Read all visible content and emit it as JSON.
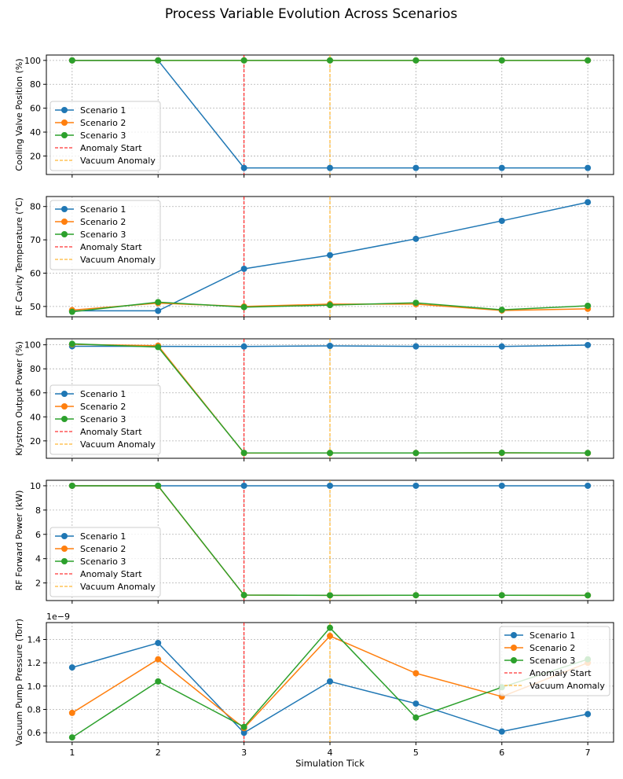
{
  "figure": {
    "title": "Process Variable Evolution Across Scenarios",
    "xlabel": "Simulation Tick"
  },
  "colors": {
    "scenario_1": "#1f77b4",
    "scenario_2": "#ff7f0e",
    "scenario_3": "#2ca02c",
    "anomaly_start": "#ff0000",
    "vacuum_anomaly": "#ffa500"
  },
  "chart_data": [
    {
      "type": "line",
      "ylabel": "Cooling Valve Position (%)",
      "x": [
        1,
        2,
        3,
        4,
        5,
        6,
        7
      ],
      "xticks": [
        "1",
        "2",
        "3",
        "4",
        "5",
        "6",
        "7"
      ],
      "xlim": [
        0.7,
        7.3
      ],
      "ylim": [
        4.5,
        104.5
      ],
      "yticks": [
        20,
        40,
        60,
        80,
        100
      ],
      "ytick_labels": [
        "20",
        "40",
        "60",
        "80",
        "100"
      ],
      "show_xtick_labels": false,
      "grid": true,
      "legend_position": "lower-left",
      "series": [
        {
          "name": "Scenario 1",
          "values": [
            100,
            100,
            10,
            10,
            10,
            10,
            10
          ]
        },
        {
          "name": "Scenario 2",
          "values": [
            100,
            100,
            100,
            100,
            100,
            100,
            100
          ]
        },
        {
          "name": "Scenario 3",
          "values": [
            100,
            100,
            100,
            100,
            100,
            100,
            100
          ]
        }
      ],
      "vlines": [
        {
          "name": "Anomaly Start",
          "x": 3
        },
        {
          "name": "Vacuum Anomaly",
          "x": 4
        }
      ]
    },
    {
      "type": "line",
      "ylabel": "RF Cavity Temperature (°C)",
      "x": [
        1,
        2,
        3,
        4,
        5,
        6,
        7
      ],
      "xticks": [
        "1",
        "2",
        "3",
        "4",
        "5",
        "6",
        "7"
      ],
      "xlim": [
        0.7,
        7.3
      ],
      "ylim": [
        46.9,
        83.0
      ],
      "yticks": [
        50,
        60,
        70,
        80
      ],
      "ytick_labels": [
        "50",
        "60",
        "70",
        "80"
      ],
      "show_xtick_labels": false,
      "grid": true,
      "legend_position": "upper-left",
      "series": [
        {
          "name": "Scenario 1",
          "values": [
            48.7,
            48.7,
            61.3,
            65.4,
            70.3,
            75.7,
            81.3
          ]
        },
        {
          "name": "Scenario 2",
          "values": [
            48.9,
            51.0,
            50.0,
            50.7,
            50.7,
            48.8,
            49.3
          ]
        },
        {
          "name": "Scenario 3",
          "values": [
            48.4,
            51.3,
            49.8,
            50.4,
            51.1,
            49.0,
            50.2
          ]
        }
      ],
      "vlines": [
        {
          "name": "Anomaly Start",
          "x": 3
        },
        {
          "name": "Vacuum Anomaly",
          "x": 4
        }
      ]
    },
    {
      "type": "line",
      "ylabel": "Klystron Output Power (%)",
      "x": [
        1,
        2,
        3,
        4,
        5,
        6,
        7
      ],
      "xticks": [
        "1",
        "2",
        "3",
        "4",
        "5",
        "6",
        "7"
      ],
      "xlim": [
        0.7,
        7.3
      ],
      "ylim": [
        5.5,
        105.0
      ],
      "yticks": [
        20,
        40,
        60,
        80,
        100
      ],
      "ytick_labels": [
        "20",
        "40",
        "60",
        "80",
        "100"
      ],
      "show_xtick_labels": false,
      "grid": true,
      "legend_position": "lower-left",
      "series": [
        {
          "name": "Scenario 1",
          "values": [
            98.8,
            98.7,
            98.6,
            99.1,
            98.7,
            98.6,
            99.8
          ]
        },
        {
          "name": "Scenario 2",
          "values": [
            100.4,
            99.3,
            9.8,
            9.9,
            9.9,
            10.0,
            9.8
          ]
        },
        {
          "name": "Scenario 3",
          "values": [
            100.8,
            98.1,
            10.0,
            9.9,
            9.9,
            10.1,
            9.9
          ]
        }
      ],
      "vlines": [
        {
          "name": "Anomaly Start",
          "x": 3
        },
        {
          "name": "Vacuum Anomaly",
          "x": 4
        }
      ]
    },
    {
      "type": "line",
      "ylabel": "RF Forward Power (kW)",
      "x": [
        1,
        2,
        3,
        4,
        5,
        6,
        7
      ],
      "xticks": [
        "1",
        "2",
        "3",
        "4",
        "5",
        "6",
        "7"
      ],
      "xlim": [
        0.7,
        7.3
      ],
      "ylim": [
        0.55,
        10.45
      ],
      "yticks": [
        2,
        4,
        6,
        8,
        10
      ],
      "ytick_labels": [
        "2",
        "4",
        "6",
        "8",
        "10"
      ],
      "show_xtick_labels": false,
      "grid": true,
      "legend_position": "lower-left",
      "series": [
        {
          "name": "Scenario 1",
          "values": [
            10.0,
            10.0,
            10.0,
            10.0,
            10.0,
            10.0,
            10.0
          ]
        },
        {
          "name": "Scenario 2",
          "values": [
            10.0,
            9.98,
            1.0,
            0.98,
            0.99,
            0.99,
            0.98
          ]
        },
        {
          "name": "Scenario 3",
          "values": [
            10.0,
            10.0,
            1.0,
            0.98,
            0.99,
            0.99,
            0.98
          ]
        }
      ],
      "vlines": [
        {
          "name": "Anomaly Start",
          "x": 3
        },
        {
          "name": "Vacuum Anomaly",
          "x": 4
        }
      ]
    },
    {
      "type": "line",
      "ylabel": "Vacuum Pump Pressure (Torr)",
      "offset_label": "1e−9",
      "x": [
        1,
        2,
        3,
        4,
        5,
        6,
        7
      ],
      "xticks": [
        "1",
        "2",
        "3",
        "4",
        "5",
        "6",
        "7"
      ],
      "xlim": [
        0.7,
        7.3
      ],
      "ylim": [
        0.52,
        1.545
      ],
      "yticks": [
        0.6,
        0.8,
        1.0,
        1.2,
        1.4
      ],
      "ytick_labels": [
        "0.6",
        "0.8",
        "1.0",
        "1.2",
        "1.4"
      ],
      "show_xtick_labels": true,
      "grid": true,
      "legend_position": "upper-right",
      "series": [
        {
          "name": "Scenario 1",
          "values": [
            1.16,
            1.37,
            0.6,
            1.04,
            0.85,
            0.61,
            0.76
          ]
        },
        {
          "name": "Scenario 2",
          "values": [
            0.77,
            1.23,
            0.64,
            1.43,
            1.11,
            0.91,
            1.2
          ]
        },
        {
          "name": "Scenario 3",
          "values": [
            0.56,
            1.04,
            0.65,
            1.5,
            0.73,
            0.99,
            1.23
          ]
        }
      ],
      "vlines": [
        {
          "name": "Anomaly Start",
          "x": 3
        },
        {
          "name": "Vacuum Anomaly",
          "x": 4
        }
      ]
    }
  ]
}
